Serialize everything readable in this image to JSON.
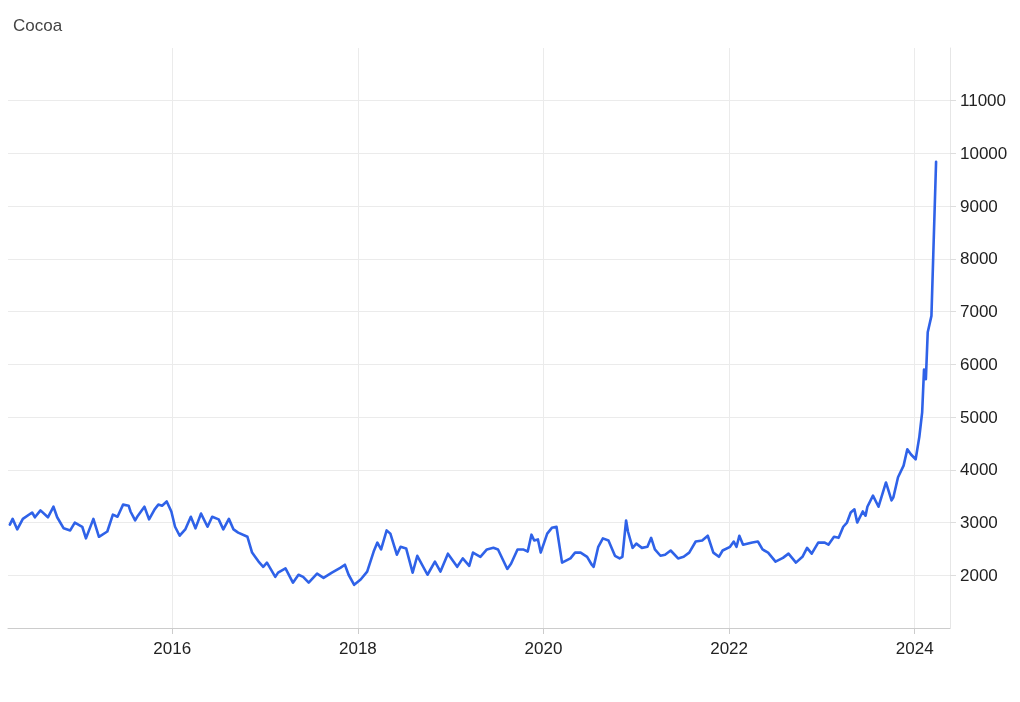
{
  "chart_data": {
    "type": "line",
    "title": "Cocoa",
    "xlim": [
      2014.23,
      2024.38
    ],
    "xticks": [
      2016,
      2018,
      2020,
      2022,
      2024
    ],
    "ylim": [
      1000,
      12000
    ],
    "yticks": [
      2000,
      3000,
      4000,
      5000,
      6000,
      7000,
      8000,
      9000,
      10000,
      11000
    ],
    "grid": true,
    "marker": "none",
    "line_style": "solid",
    "series": [
      {
        "color": "#2f62e8",
        "x": [
          2014.25,
          2014.28,
          2014.33,
          2014.39,
          2014.49,
          2014.52,
          2014.58,
          2014.66,
          2014.72,
          2014.76,
          2014.83,
          2014.9,
          2014.95,
          2015.03,
          2015.07,
          2015.15,
          2015.21,
          2015.3,
          2015.36,
          2015.41,
          2015.47,
          2015.53,
          2015.55,
          2015.6,
          2015.63,
          2015.7,
          2015.75,
          2015.81,
          2015.85,
          2015.89,
          2015.94,
          2015.99,
          2016.03,
          2016.08,
          2016.14,
          2016.2,
          2016.25,
          2016.31,
          2016.38,
          2016.43,
          2016.5,
          2016.55,
          2016.61,
          2016.66,
          2016.71,
          2016.81,
          2016.86,
          2016.93,
          2016.98,
          2017.02,
          2017.11,
          2017.14,
          2017.22,
          2017.3,
          2017.36,
          2017.41,
          2017.47,
          2017.56,
          2017.63,
          2017.72,
          2017.81,
          2017.86,
          2017.9,
          2017.96,
          2018.03,
          2018.1,
          2018.17,
          2018.21,
          2018.25,
          2018.31,
          2018.35,
          2018.42,
          2018.46,
          2018.52,
          2018.59,
          2018.64,
          2018.75,
          2018.83,
          2018.89,
          2018.97,
          2019.07,
          2019.13,
          2019.2,
          2019.24,
          2019.32,
          2019.39,
          2019.46,
          2019.51,
          2019.61,
          2019.65,
          2019.72,
          2019.78,
          2019.83,
          2019.87,
          2019.9,
          2019.94,
          2019.97,
          2020.04,
          2020.09,
          2020.14,
          2020.2,
          2020.29,
          2020.34,
          2020.4,
          2020.47,
          2020.52,
          2020.54,
          2020.59,
          2020.64,
          2020.7,
          2020.77,
          2020.82,
          2020.85,
          2020.89,
          2020.91,
          2020.96,
          2021.0,
          2021.06,
          2021.12,
          2021.16,
          2021.2,
          2021.26,
          2021.31,
          2021.37,
          2021.45,
          2021.51,
          2021.57,
          2021.64,
          2021.71,
          2021.77,
          2021.83,
          2021.89,
          2021.93,
          2022.01,
          2022.05,
          2022.08,
          2022.11,
          2022.15,
          2022.25,
          2022.31,
          2022.36,
          2022.42,
          2022.5,
          2022.58,
          2022.64,
          2022.72,
          2022.79,
          2022.84,
          2022.89,
          2022.96,
          2023.03,
          2023.07,
          2023.13,
          2023.18,
          2023.23,
          2023.27,
          2023.31,
          2023.35,
          2023.38,
          2023.44,
          2023.47,
          2023.49,
          2023.55,
          2023.61,
          2023.69,
          2023.75,
          2023.77,
          2023.82,
          2023.88,
          2023.92,
          2023.96,
          2024.01,
          2024.05,
          2024.08,
          2024.1,
          2024.12,
          2024.14,
          2024.18,
          2024.23
        ],
        "values": [
          2960,
          3070,
          2870,
          3070,
          3190,
          3100,
          3230,
          3100,
          3300,
          3100,
          2890,
          2850,
          3000,
          2920,
          2700,
          3070,
          2730,
          2830,
          3150,
          3110,
          3340,
          3320,
          3210,
          3040,
          3130,
          3300,
          3060,
          3250,
          3340,
          3320,
          3400,
          3210,
          2920,
          2750,
          2870,
          3110,
          2890,
          3170,
          2920,
          3110,
          3060,
          2870,
          3070,
          2870,
          2810,
          2730,
          2430,
          2260,
          2160,
          2240,
          1970,
          2050,
          2130,
          1860,
          2010,
          1970,
          1860,
          2030,
          1950,
          2050,
          2140,
          2200,
          2010,
          1820,
          1920,
          2070,
          2450,
          2620,
          2490,
          2850,
          2790,
          2390,
          2540,
          2510,
          2050,
          2370,
          2010,
          2260,
          2070,
          2410,
          2160,
          2320,
          2180,
          2430,
          2350,
          2490,
          2520,
          2490,
          2120,
          2220,
          2490,
          2490,
          2450,
          2770,
          2660,
          2680,
          2430,
          2790,
          2900,
          2920,
          2240,
          2320,
          2430,
          2430,
          2350,
          2200,
          2160,
          2540,
          2700,
          2660,
          2370,
          2320,
          2350,
          3040,
          2830,
          2520,
          2600,
          2520,
          2540,
          2710,
          2490,
          2370,
          2390,
          2470,
          2320,
          2350,
          2430,
          2640,
          2660,
          2750,
          2430,
          2350,
          2470,
          2540,
          2640,
          2540,
          2750,
          2580,
          2620,
          2640,
          2490,
          2430,
          2260,
          2330,
          2410,
          2240,
          2350,
          2520,
          2410,
          2620,
          2620,
          2580,
          2730,
          2710,
          2920,
          3000,
          3190,
          3250,
          3000,
          3210,
          3130,
          3300,
          3510,
          3300,
          3760,
          3420,
          3480,
          3860,
          4080,
          4390,
          4290,
          4200,
          4630,
          5090,
          5900,
          5720,
          6610,
          6920,
          9840
        ]
      }
    ]
  }
}
